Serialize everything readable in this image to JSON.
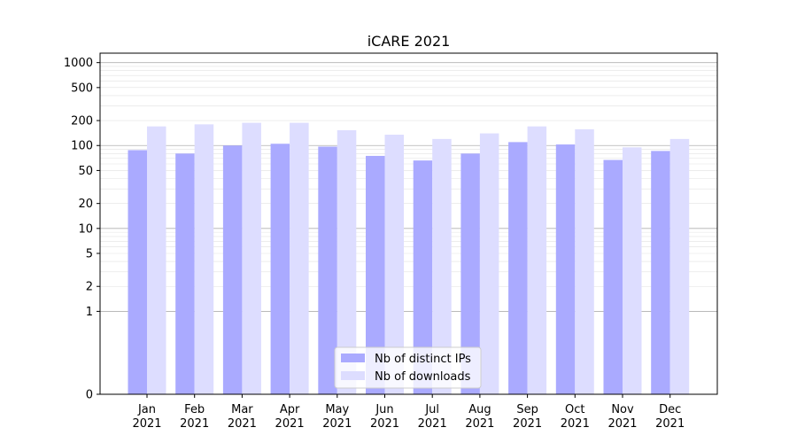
{
  "chart_data": {
    "type": "bar",
    "title": "iCARE 2021",
    "xlabel": "",
    "ylabel": "",
    "yscale": "symlog",
    "ylim": [
      0,
      1300
    ],
    "yticks": [
      0,
      1,
      2,
      5,
      10,
      20,
      50,
      100,
      200,
      500,
      1000
    ],
    "grid": "horizontal, major and minor",
    "legend_position": "bottom-center",
    "categories": [
      "Jan\n2021",
      "Feb\n2021",
      "Mar\n2021",
      "Apr\n2021",
      "May\n2021",
      "Jun\n2021",
      "Jul\n2021",
      "Aug\n2021",
      "Sep\n2021",
      "Oct\n2021",
      "Nov\n2021",
      "Dec\n2021"
    ],
    "series": [
      {
        "name": "Nb of distinct IPs",
        "color": "#aaaaff",
        "values": [
          88,
          80,
          100,
          105,
          97,
          75,
          66,
          80,
          110,
          103,
          67,
          86
        ]
      },
      {
        "name": "Nb of downloads",
        "color": "#ddddff",
        "values": [
          170,
          180,
          188,
          188,
          153,
          135,
          120,
          140,
          170,
          157,
          95,
          120
        ]
      }
    ]
  }
}
